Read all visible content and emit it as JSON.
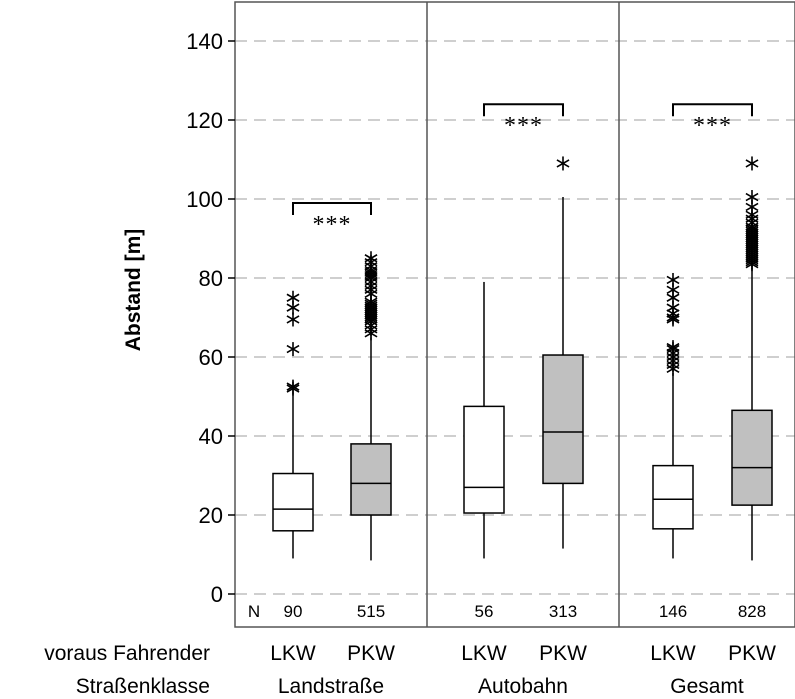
{
  "chart_data": {
    "type": "box",
    "ylabel": "Abstand [m]",
    "ylim": [
      -8,
      148
    ],
    "yticks": [
      0,
      20,
      40,
      60,
      80,
      100,
      120,
      140
    ],
    "grid": "horizontal-dashed",
    "row_labels": {
      "vehicle": "voraus Fahrender",
      "road": "Straßenklasse",
      "n": "N"
    },
    "significance_label": "***",
    "colors": {
      "LKW": "#ffffff",
      "PKW": "#c0c0c0",
      "grid": "#bfbfbf",
      "stroke": "#000000"
    },
    "groups": [
      {
        "name": "Landstraße",
        "significance": "***",
        "boxes": [
          {
            "category": "LKW",
            "n": "90",
            "whisker_low": 9,
            "q1": 16,
            "median": 21.5,
            "q3": 30.5,
            "whisker_high": 51,
            "outliers": [
              52,
              52.5,
              62,
              69.5,
              72.5,
              75
            ]
          },
          {
            "category": "PKW",
            "n": "515",
            "whisker_low": 8.5,
            "q1": 20,
            "median": 28,
            "q3": 38,
            "whisker_high": 65,
            "outliers": [
              66,
              67,
              68,
              69,
              69.5,
              70,
              70.5,
              71,
              71.5,
              72,
              72.5,
              73,
              73.5,
              74,
              76,
              77,
              78,
              79,
              80,
              80.5,
              81,
              81.5,
              82,
              83,
              84,
              85
            ]
          }
        ]
      },
      {
        "name": "Autobahn",
        "significance": "***",
        "boxes": [
          {
            "category": "LKW",
            "n": "56",
            "whisker_low": 9,
            "q1": 20.5,
            "median": 27,
            "q3": 47.5,
            "whisker_high": 79,
            "outliers": []
          },
          {
            "category": "PKW",
            "n": "313",
            "whisker_low": 11.5,
            "q1": 28,
            "median": 41,
            "q3": 60.5,
            "whisker_high": 100.5,
            "outliers": [
              109
            ]
          }
        ]
      },
      {
        "name": "Gesamt",
        "significance": "***",
        "boxes": [
          {
            "category": "LKW",
            "n": "146",
            "whisker_low": 9,
            "q1": 16.5,
            "median": 24,
            "q3": 32.5,
            "whisker_high": 56,
            "outliers": [
              57,
              58,
              59,
              60,
              61,
              62,
              62.5,
              69.5,
              70,
              71,
              72.5,
              75,
              77,
              79.5
            ]
          },
          {
            "category": "PKW",
            "n": "828",
            "whisker_low": 8.5,
            "q1": 22.5,
            "median": 32,
            "q3": 46.5,
            "whisker_high": 82.5,
            "outliers": [
              83.5,
              84,
              84.5,
              85,
              85.5,
              86,
              86.5,
              87,
              87.5,
              88,
              88.5,
              89,
              89.5,
              90,
              90.5,
              91,
              91.5,
              92,
              92.5,
              93,
              94,
              95,
              96,
              98,
              100.5,
              109
            ]
          }
        ]
      }
    ]
  }
}
